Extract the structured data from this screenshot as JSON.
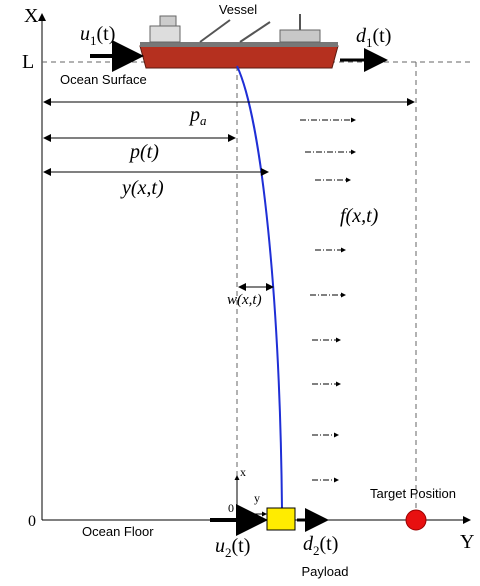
{
  "axes": {
    "x_label": "X",
    "y_label": "Y",
    "surface_level": "L",
    "origin": "0"
  },
  "vessel": {
    "label": "Vessel",
    "input": {
      "symbol": "u",
      "subscript": "1",
      "argument": "(t)"
    },
    "disturbance": {
      "symbol": "d",
      "subscript": "1",
      "argument": "(t)"
    }
  },
  "ocean_surface": "Ocean Surface",
  "ocean_floor": "Ocean Floor",
  "distances": {
    "target": {
      "symbol": "p",
      "subscript": "a"
    },
    "vessel_position": "p(t)",
    "riser_position": "y(x,t)",
    "deflection": "w(x,t)"
  },
  "load": "f(x,t)",
  "local_frame": {
    "x": "x",
    "y": "y",
    "origin": "0"
  },
  "payload": {
    "label": "Payload",
    "input": {
      "symbol": "u",
      "subscript": "2",
      "argument": "(t)"
    },
    "disturbance": {
      "symbol": "d",
      "subscript": "2",
      "argument": "(t)"
    }
  },
  "target": "Target Position"
}
